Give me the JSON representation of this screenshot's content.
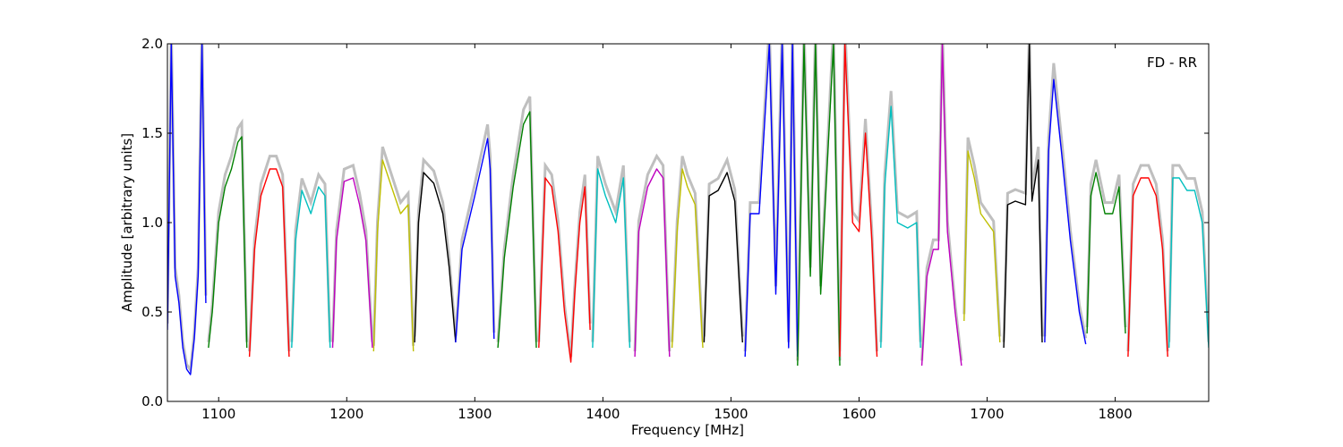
{
  "chart_data": {
    "type": "line",
    "title": "",
    "xlabel": "Frequency [MHz]",
    "ylabel": "Amplitude [arbitrary units]",
    "annotation": "FD - RR",
    "annotation_position": "top-right",
    "xlim": [
      1060,
      1873
    ],
    "ylim": [
      0.0,
      2.0
    ],
    "xticks": [
      1100,
      1200,
      1300,
      1400,
      1500,
      1600,
      1700,
      1800
    ],
    "yticks": [
      0.0,
      0.5,
      1.0,
      1.5,
      2.0
    ],
    "ytick_labels": [
      "0.0",
      "0.5",
      "1.0",
      "1.5",
      "2.0"
    ],
    "grid": false,
    "background_color": "#bfbfbf",
    "band_colors": [
      "#0000ff",
      "#008000",
      "#ff0000",
      "#00bfbf",
      "#bf00bf",
      "#bfbf00",
      "#000000"
    ],
    "series": [
      {
        "color": "#0000ff",
        "x": [
          1060,
          1063,
          1066,
          1069,
          1072,
          1075,
          1078,
          1081,
          1084,
          1087,
          1090
        ],
        "y": [
          0.4,
          2.0,
          0.7,
          0.55,
          0.3,
          0.18,
          0.15,
          0.35,
          0.7,
          2.0,
          0.55
        ]
      },
      {
        "color": "#008000",
        "x": [
          1092,
          1095,
          1100,
          1105,
          1110,
          1115,
          1118,
          1122
        ],
        "y": [
          0.3,
          0.5,
          1.0,
          1.2,
          1.3,
          1.45,
          1.48,
          0.3
        ]
      },
      {
        "color": "#ff0000",
        "x": [
          1124,
          1128,
          1133,
          1140,
          1145,
          1150,
          1155
        ],
        "y": [
          0.25,
          0.85,
          1.15,
          1.3,
          1.3,
          1.2,
          0.25
        ]
      },
      {
        "color": "#00bfbf",
        "x": [
          1157,
          1160,
          1165,
          1172,
          1178,
          1183,
          1187
        ],
        "y": [
          0.3,
          0.9,
          1.18,
          1.05,
          1.2,
          1.15,
          0.3
        ]
      },
      {
        "color": "#bf00bf",
        "x": [
          1189,
          1192,
          1198,
          1205,
          1210,
          1215,
          1220
        ],
        "y": [
          0.3,
          0.9,
          1.23,
          1.25,
          1.1,
          0.9,
          0.3
        ]
      },
      {
        "color": "#bfbf00",
        "x": [
          1221,
          1224,
          1228,
          1235,
          1242,
          1248,
          1252
        ],
        "y": [
          0.28,
          0.95,
          1.35,
          1.2,
          1.05,
          1.1,
          0.28
        ]
      },
      {
        "color": "#000000",
        "x": [
          1253,
          1256,
          1260,
          1268,
          1275,
          1280,
          1285
        ],
        "y": [
          0.33,
          1.0,
          1.28,
          1.22,
          1.05,
          0.75,
          0.33
        ]
      },
      {
        "color": "#0000ff",
        "x": [
          1285,
          1290,
          1300,
          1310,
          1312,
          1315
        ],
        "y": [
          0.33,
          0.85,
          1.15,
          1.47,
          1.3,
          0.35
        ]
      },
      {
        "color": "#008000",
        "x": [
          1318,
          1323,
          1330,
          1338,
          1343,
          1348
        ],
        "y": [
          0.3,
          0.8,
          1.2,
          1.55,
          1.62,
          0.3
        ]
      },
      {
        "color": "#ff0000",
        "x": [
          1350,
          1355,
          1360,
          1365,
          1370,
          1375,
          1378,
          1382,
          1386,
          1390
        ],
        "y": [
          0.3,
          1.25,
          1.2,
          0.95,
          0.5,
          0.22,
          0.6,
          1.0,
          1.2,
          0.4
        ]
      },
      {
        "color": "#00bfbf",
        "x": [
          1392,
          1396,
          1402,
          1410,
          1416,
          1421
        ],
        "y": [
          0.3,
          1.3,
          1.15,
          1.0,
          1.25,
          0.3
        ]
      },
      {
        "color": "#bf00bf",
        "x": [
          1425,
          1428,
          1435,
          1442,
          1447,
          1452
        ],
        "y": [
          0.25,
          0.95,
          1.2,
          1.3,
          1.25,
          0.25
        ]
      },
      {
        "color": "#bfbf00",
        "x": [
          1454,
          1458,
          1462,
          1466,
          1472,
          1478
        ],
        "y": [
          0.3,
          0.95,
          1.3,
          1.2,
          1.1,
          0.3
        ]
      },
      {
        "color": "#000000",
        "x": [
          1479,
          1483,
          1490,
          1497,
          1503,
          1509
        ],
        "y": [
          0.33,
          1.15,
          1.18,
          1.28,
          1.12,
          0.33
        ]
      },
      {
        "color": "#0000ff",
        "x": [
          1511,
          1515,
          1522,
          1530,
          1535,
          1540,
          1545,
          1548,
          1552
        ],
        "y": [
          0.25,
          1.05,
          1.05,
          2.0,
          0.6,
          2.0,
          0.3,
          2.0,
          0.25
        ]
      },
      {
        "color": "#008000",
        "x": [
          1552,
          1557,
          1562,
          1566,
          1570,
          1575,
          1580,
          1585
        ],
        "y": [
          0.2,
          2.0,
          0.7,
          2.0,
          0.6,
          1.3,
          2.0,
          0.2
        ]
      },
      {
        "color": "#ff0000",
        "x": [
          1585,
          1589,
          1595,
          1600,
          1605,
          1610,
          1614
        ],
        "y": [
          0.25,
          2.0,
          1.0,
          0.95,
          1.5,
          0.9,
          0.25
        ]
      },
      {
        "color": "#00bfbf",
        "x": [
          1617,
          1620,
          1625,
          1630,
          1638,
          1645,
          1648
        ],
        "y": [
          0.3,
          1.2,
          1.65,
          1.0,
          0.97,
          1.0,
          0.3
        ]
      },
      {
        "color": "#bf00bf",
        "x": [
          1649,
          1653,
          1658,
          1662,
          1665,
          1669,
          1675,
          1680
        ],
        "y": [
          0.2,
          0.7,
          0.85,
          0.85,
          2.0,
          0.95,
          0.5,
          0.2
        ]
      },
      {
        "color": "#bfbf00",
        "x": [
          1682,
          1685,
          1690,
          1695,
          1700,
          1705,
          1710
        ],
        "y": [
          0.45,
          1.4,
          1.25,
          1.05,
          1.0,
          0.95,
          0.33
        ]
      },
      {
        "color": "#000000",
        "x": [
          1713,
          1716,
          1722,
          1730,
          1733,
          1735,
          1740,
          1743
        ],
        "y": [
          0.3,
          1.1,
          1.12,
          1.1,
          2.0,
          1.12,
          1.35,
          0.33
        ]
      },
      {
        "color": "#0000ff",
        "x": [
          1745,
          1748,
          1752,
          1758,
          1765,
          1772,
          1777
        ],
        "y": [
          0.33,
          1.4,
          1.8,
          1.4,
          0.9,
          0.5,
          0.32
        ]
      },
      {
        "color": "#008000",
        "x": [
          1778,
          1781,
          1785,
          1792,
          1798,
          1803,
          1808
        ],
        "y": [
          0.38,
          1.15,
          1.28,
          1.05,
          1.05,
          1.2,
          0.38
        ]
      },
      {
        "color": "#ff0000",
        "x": [
          1810,
          1814,
          1820,
          1826,
          1832,
          1837,
          1841
        ],
        "y": [
          0.25,
          1.15,
          1.25,
          1.25,
          1.15,
          0.85,
          0.25
        ]
      },
      {
        "color": "#00bfbf",
        "x": [
          1842,
          1845,
          1850,
          1856,
          1862,
          1868,
          1873
        ],
        "y": [
          0.3,
          1.25,
          1.25,
          1.18,
          1.18,
          1.0,
          0.3
        ]
      }
    ]
  }
}
